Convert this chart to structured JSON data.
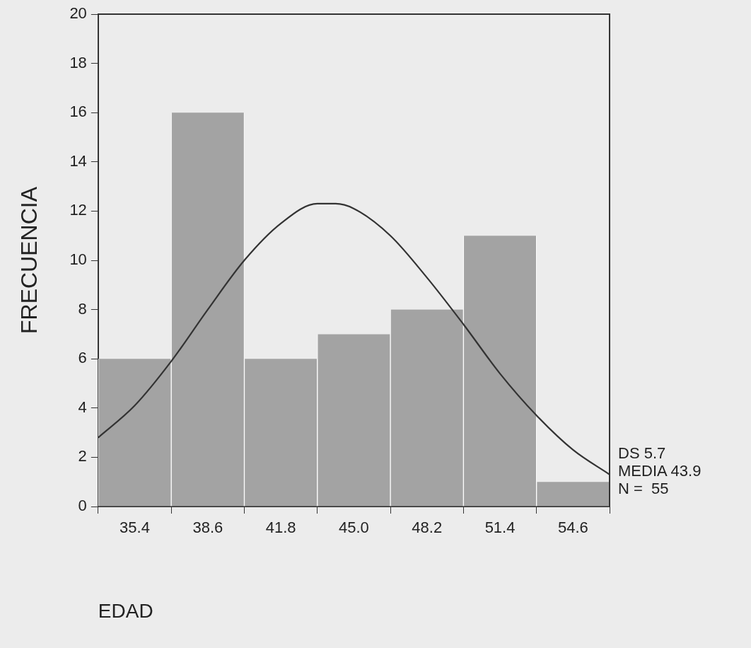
{
  "chart_data": {
    "type": "histogram",
    "xlabel": "EDAD",
    "ylabel": "FRECUENCIA",
    "bins": [
      33.8,
      37.0,
      40.2,
      43.4,
      46.6,
      49.8,
      53.0,
      56.2
    ],
    "values": [
      6,
      16,
      6,
      7,
      8,
      11,
      1
    ],
    "color": "#a3a3a3",
    "series": [
      {
        "type": "line",
        "color": "#333333",
        "x": [
          33.8,
          35.4,
          37.0,
          38.6,
          40.2,
          41.8,
          43.4,
          44.2,
          45.0,
          46.6,
          48.2,
          49.8,
          51.4,
          53.0,
          54.6,
          56.2
        ],
        "values": [
          2.8,
          4.1,
          5.9,
          8.0,
          10.0,
          11.5,
          12.3,
          12.3,
          12.1,
          11.0,
          9.3,
          7.4,
          5.4,
          3.7,
          2.3,
          1.3
        ]
      }
    ],
    "xlim": [
      33.8,
      56.2
    ],
    "xticks": [
      35.4,
      38.6,
      41.8,
      {
        "value": 45,
        "label": "45.0"
      },
      48.2,
      51.4,
      54.6
    ],
    "ylim": [
      0,
      20
    ],
    "yticks": [
      0,
      2,
      4,
      6,
      8,
      10,
      12,
      14,
      16,
      18,
      20
    ],
    "grid": false,
    "legend": false,
    "marker": "none",
    "line_style": "solid",
    "annotations": [
      "DS 5.7",
      "MEDIA 43.9",
      "N =  55"
    ]
  }
}
